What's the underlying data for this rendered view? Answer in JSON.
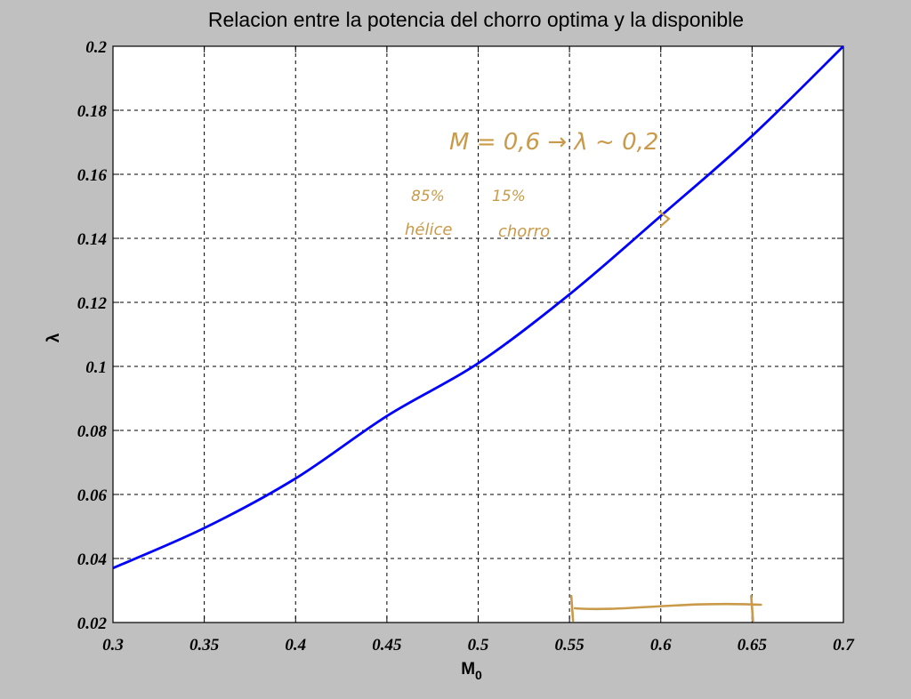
{
  "chart_data": {
    "type": "line",
    "title": "Relacion entre la potencia del chorro optima y la disponible",
    "xlabel": "M",
    "xlabel_subscript": "0",
    "ylabel": "λ",
    "xlim": [
      0.3,
      0.7
    ],
    "ylim": [
      0.02,
      0.2
    ],
    "grid": true,
    "xticks": [
      0.3,
      0.35,
      0.4,
      0.45,
      0.5,
      0.55,
      0.6,
      0.65,
      0.7
    ],
    "xtick_labels": [
      "0.3",
      "0.35",
      "0.4",
      "0.45",
      "0.5",
      "0.55",
      "0.6",
      "0.65",
      "0.7"
    ],
    "yticks": [
      0.02,
      0.04,
      0.06,
      0.08,
      0.1,
      0.12,
      0.14,
      0.16,
      0.18,
      0.2
    ],
    "ytick_labels": [
      "0.02",
      "0.04",
      "0.06",
      "0.08",
      "0.1",
      "0.12",
      "0.14",
      "0.16",
      "0.18",
      "0.2"
    ],
    "series": [
      {
        "color": "#0000ff",
        "x": [
          0.3,
          0.35,
          0.4,
          0.45,
          0.5,
          0.55,
          0.6,
          0.65,
          0.7
        ],
        "y": [
          0.037,
          0.0495,
          0.065,
          0.0845,
          0.101,
          0.1225,
          0.147,
          0.172,
          0.2
        ]
      }
    ],
    "annotations": {
      "color": "#c99a4a",
      "line1": "M = 0,6 → λ ~ 0,2",
      "pct_helice": "85%",
      "label_helice": "hélice",
      "pct_chorro": "15%",
      "label_chorro": "chorro",
      "bracket_range": [
        0.55,
        0.65
      ]
    }
  }
}
